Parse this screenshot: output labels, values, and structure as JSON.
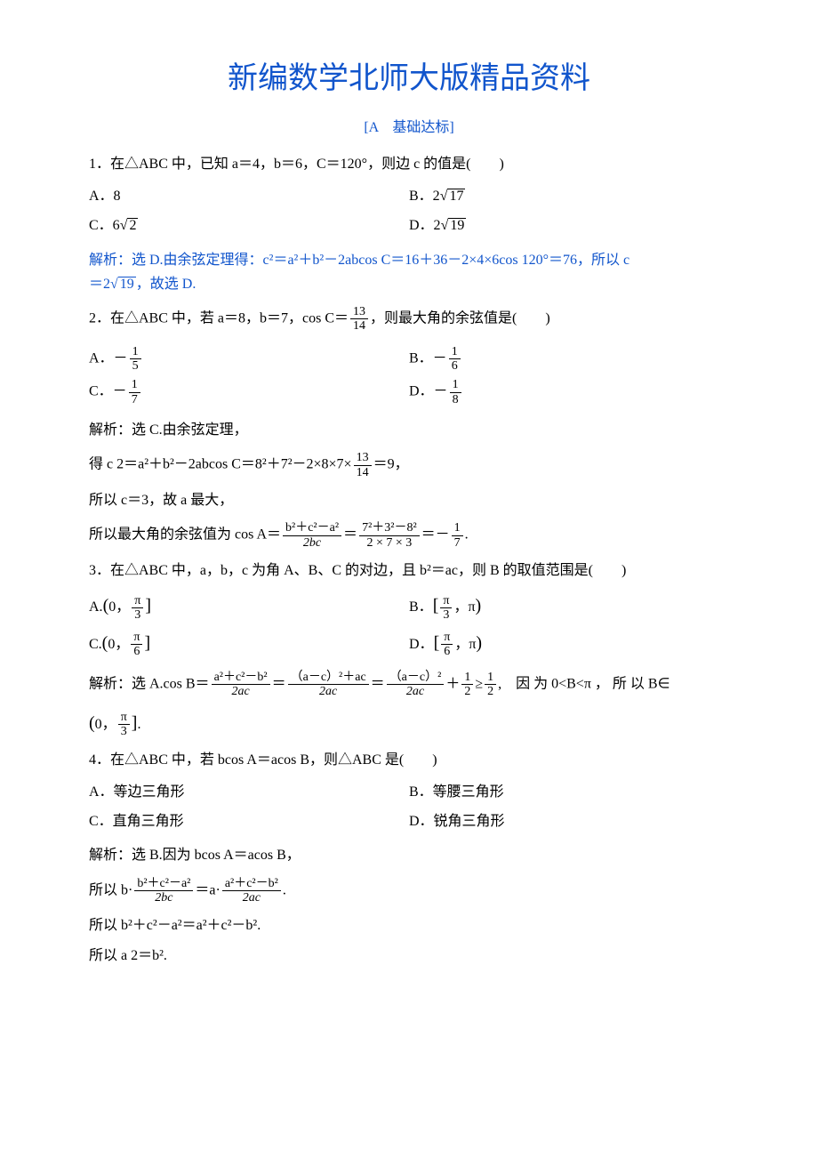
{
  "title": "新编数学北师大版精品资料",
  "section": "[A　基础达标]",
  "q1": {
    "text": "1．在△ABC 中，已知 a＝4，b＝6，C＝120°，则边 c 的值是(　　)",
    "A": "A．8",
    "B": "B．2√17",
    "C": "C．6√2",
    "D": "D．2√19",
    "sol1": "解析：选 D.由余弦定理得：c²＝a²＋b²－2abcos C＝16＋36－2×4×6cos 120°＝76，所以 c",
    "sol2": "＝2√19，故选 D."
  },
  "q2": {
    "pre": "2．在△ABC 中，若 a＝8，b＝7，cos C＝",
    "frac_num": "13",
    "frac_den": "14",
    "post": "，则最大角的余弦值是(　　)",
    "A_pre": "A．－",
    "A_num": "1",
    "A_den": "5",
    "B_pre": "B．－",
    "B_num": "1",
    "B_den": "6",
    "C_pre": "C．－",
    "C_num": "1",
    "C_den": "7",
    "D_pre": "D．－",
    "D_num": "1",
    "D_den": "8",
    "sol_head": "解析：选 C.由余弦定理，",
    "sol_l1_pre": "得 c 2＝a²＋b²－2abcos C＝8²＋7²－2×8×7×",
    "sol_l1_num": "13",
    "sol_l1_den": "14",
    "sol_l1_post": "＝9，",
    "sol_l2": "所以 c＝3，故 a 最大，",
    "sol_l3_pre": "所以最大角的余弦值为 cos A＝",
    "f1_num": "b²＋c²－a²",
    "f1_den": "2bc",
    "eq1": "＝",
    "f2_num": "7²＋3²－8²",
    "f2_den": "2 × 7 × 3",
    "eq2": "＝－",
    "f3_num": "1",
    "f3_den": "7",
    "sol_l3_post": "."
  },
  "q3": {
    "text": "3．在△ABC 中，a，b，c 为角 A、B、C 的对边，且 b²＝ac，则 B 的取值范围是(　　)",
    "A_pre": "A.",
    "A_inside_pre": "0，",
    "A_num": "π",
    "A_den": "3",
    "B_pre": "B．",
    "B_num": "π",
    "B_den": "3",
    "B_inside_post": "，π",
    "C_pre": "C.",
    "C_inside_pre": "0，",
    "C_num": "π",
    "C_den": "6",
    "D_pre": "D．",
    "D_num": "π",
    "D_den": "6",
    "D_inside_post": "，π",
    "sol_pre": "解析：选 A.cos B＝",
    "sf1_num": "a²＋c²－b²",
    "sf1_den": "2ac",
    "seq1": "＝",
    "sf2_num": "（a－c）²＋ac",
    "sf2_den": "2ac",
    "seq2": "＝",
    "sf3_num": "（a－c）²",
    "sf3_den": "2ac",
    "seq3": "＋",
    "sf4_num": "1",
    "sf4_den": "2",
    "seq4": "≥",
    "sf5_num": "1",
    "sf5_den": "2",
    "sol_post": ",　因 为 0<B<π ， 所 以 B∈",
    "sol_final_pre": "0，",
    "sol_final_num": "π",
    "sol_final_den": "3",
    "sol_final_post": "."
  },
  "q4": {
    "text": "4．在△ABC 中，若 bcos A＝acos B，则△ABC 是(　　)",
    "A": "A．等边三角形",
    "B": "B．等腰三角形",
    "C": "C．直角三角形",
    "D": "D．锐角三角形",
    "sol_head": "解析：选 B.因为 bcos A＝acos B，",
    "sol_l1_pre": "所以 b·",
    "sf1_num": "b²＋c²－a²",
    "sf1_den": "2bc",
    "eq": "＝a·",
    "sf2_num": "a²＋c²－b²",
    "sf2_den": "2ac",
    "sol_l1_post": ".",
    "sol_l2": "所以 b²＋c²－a²＝a²＋c²－b².",
    "sol_l3": "所以 a 2＝b²."
  }
}
